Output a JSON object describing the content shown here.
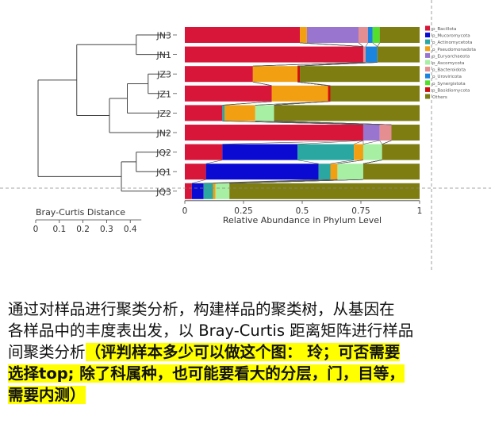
{
  "chart_data": {
    "type": "bar",
    "orientation": "horizontal-stacked",
    "xlabel": "Relative Abundance in Phylum Level",
    "xlim": [
      0,
      1
    ],
    "xticks": [
      "0",
      "0.25",
      "0.5",
      "0.75",
      "1"
    ],
    "dendrogram_title": "Bray-Curtis Distance",
    "dendrogram_ticks": [
      "0",
      "0.1",
      "0.2",
      "0.3",
      "0.4"
    ],
    "categories": [
      "JN3",
      "JN1",
      "JZ3",
      "JZ1",
      "JZ2",
      "JN2",
      "JQ2",
      "JQ1",
      "JQ3"
    ],
    "series": [
      {
        "name": "p_Bacillota",
        "color": "#d7163a",
        "values": [
          0.49,
          0.76,
          0.29,
          0.37,
          0.16,
          0.76,
          0.16,
          0.09,
          0.03
        ]
      },
      {
        "name": "p_Mucoromycota",
        "color": "#0a0ad2",
        "values": [
          0,
          0,
          0,
          0,
          0,
          0,
          0.32,
          0.48,
          0.05
        ]
      },
      {
        "name": "p_Actinomycetota",
        "color": "#2aa7a0",
        "values": [
          0,
          0,
          0,
          0,
          0.01,
          0,
          0.24,
          0.05,
          0.04
        ]
      },
      {
        "name": "p_Pseudomonadota",
        "color": "#f29f12",
        "values": [
          0.03,
          0,
          0.19,
          0.24,
          0.13,
          0,
          0.04,
          0.03,
          0.01
        ]
      },
      {
        "name": "p_Euryarchaeota",
        "color": "#9a75d0",
        "values": [
          0.22,
          0,
          0,
          0,
          0,
          0.07,
          0,
          0,
          0
        ]
      },
      {
        "name": "p_Ascomycota",
        "color": "#a7f0a3",
        "values": [
          0,
          0,
          0,
          0,
          0.08,
          0,
          0.08,
          0.11,
          0.06
        ]
      },
      {
        "name": "p_Bacteroidota",
        "color": "#e58e92",
        "values": [
          0.04,
          0.01,
          0,
          0,
          0,
          0.05,
          0,
          0,
          0
        ]
      },
      {
        "name": "p_Uroviricota",
        "color": "#1a84df",
        "values": [
          0.02,
          0.05,
          0,
          0,
          0,
          0,
          0,
          0,
          0
        ]
      },
      {
        "name": "p_Synergistota",
        "color": "#53e02a",
        "values": [
          0.03,
          0,
          0,
          0,
          0,
          0,
          0,
          0,
          0
        ]
      },
      {
        "name": "p_Basidiomycota",
        "color": "#cf0f0f",
        "values": [
          0,
          0,
          0.01,
          0.01,
          0,
          0,
          0,
          0,
          0
        ]
      },
      {
        "name": "Others",
        "color": "#7d7d12",
        "values": [
          0.17,
          0.18,
          0.51,
          0.38,
          0.62,
          0.12,
          0.16,
          0.24,
          0.81
        ]
      }
    ],
    "dendrogram": {
      "merges": [
        {
          "children": [
            "JN3",
            "JN1"
          ],
          "height": 0.11
        },
        {
          "children": [
            "JZ3",
            "JZ1"
          ],
          "height": 0.07
        },
        {
          "children": [
            "m1",
            "JZ2"
          ],
          "height": 0.14
        },
        {
          "children": [
            "m2",
            "JN2"
          ],
          "height": 0.2
        },
        {
          "children": [
            "m0",
            "m3"
          ],
          "height": 0.31
        },
        {
          "children": [
            "JQ2",
            "JQ1"
          ],
          "height": 0.11
        },
        {
          "children": [
            "m5",
            "JQ3"
          ],
          "height": 0.16
        },
        {
          "children": [
            "m4",
            "m6"
          ],
          "height": 0.44
        }
      ]
    }
  },
  "text": {
    "line1": "通过对样品进行聚类分析，构建样品的聚类树，从基因在",
    "line2": "各样品中的丰度表出发，以 Bray-Curtis 距离矩阵进行样品",
    "line3_plain": "间聚类分析",
    "line3_highlight": "（评判样本多少可以做这个图： 玲；可否需要",
    "line4_highlight": "选择top; 除了科属种，也可能要看大的分层，门，目等，",
    "line5_highlight": "需要内测）"
  }
}
